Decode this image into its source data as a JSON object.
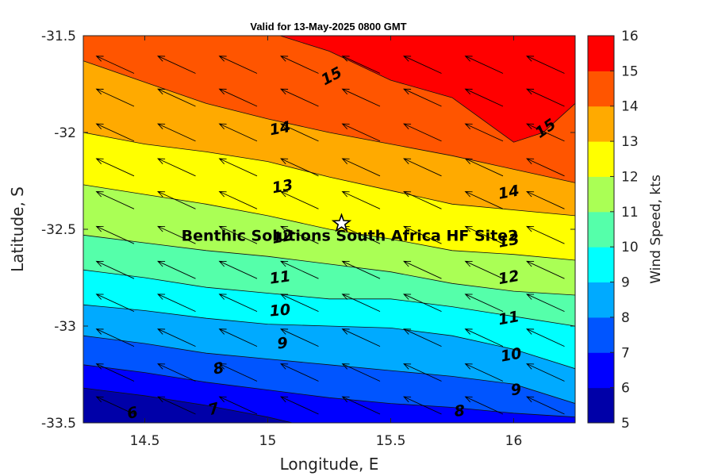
{
  "chart_data": {
    "type": "contour",
    "title": "Valid for 13-May-2025 0800 GMT",
    "xlabel": "Longitude, E",
    "ylabel": "Latitude, S",
    "xlim": [
      14.25,
      16.25
    ],
    "ylim": [
      -33.5,
      -31.5
    ],
    "x_ticks": [
      {
        "value": 14.5,
        "label": "14.5"
      },
      {
        "value": 15,
        "label": "15"
      },
      {
        "value": 15.5,
        "label": "15.5"
      },
      {
        "value": 16,
        "label": "16"
      }
    ],
    "y_ticks": [
      {
        "value": -31.5,
        "label": "-31.5"
      },
      {
        "value": -32,
        "label": "-32"
      },
      {
        "value": -32.5,
        "label": "-32.5"
      },
      {
        "value": -33,
        "label": "-33"
      },
      {
        "value": -33.5,
        "label": "-33.5"
      }
    ],
    "colorbar": {
      "label": "Wind Speed, kts",
      "min": 5,
      "max": 16,
      "tick_labels": [
        "5",
        "6",
        "7",
        "8",
        "9",
        "10",
        "11",
        "12",
        "13",
        "14",
        "15",
        "16"
      ],
      "colors": [
        "#0000a8",
        "#0000ff",
        "#0055ff",
        "#00aaff",
        "#00ffff",
        "#55ffaa",
        "#aaff55",
        "#ffff00",
        "#ffaa00",
        "#ff5500",
        "#ff0000"
      ]
    },
    "contours": [
      {
        "level": 6,
        "points": [
          [
            14.25,
            -33.32
          ],
          [
            14.5,
            -33.36
          ],
          [
            14.75,
            -33.41
          ],
          [
            15.0,
            -33.47
          ],
          [
            15.1,
            -33.5
          ]
        ]
      },
      {
        "level": 7,
        "points": [
          [
            14.25,
            -33.2
          ],
          [
            14.5,
            -33.24
          ],
          [
            14.75,
            -33.29
          ],
          [
            15.0,
            -33.33
          ],
          [
            15.25,
            -33.37
          ],
          [
            15.5,
            -33.4
          ],
          [
            15.75,
            -33.42
          ],
          [
            16.0,
            -33.45
          ],
          [
            16.25,
            -33.47
          ]
        ]
      },
      {
        "level": 8,
        "points": [
          [
            14.25,
            -33.05
          ],
          [
            14.5,
            -33.09
          ],
          [
            14.75,
            -33.14
          ],
          [
            15.0,
            -33.17
          ],
          [
            15.25,
            -33.2
          ],
          [
            15.5,
            -33.23
          ],
          [
            15.75,
            -33.26
          ],
          [
            16.0,
            -33.3
          ],
          [
            16.25,
            -33.4
          ]
        ]
      },
      {
        "level": 9,
        "points": [
          [
            14.25,
            -32.89
          ],
          [
            14.5,
            -32.92
          ],
          [
            14.75,
            -32.96
          ],
          [
            15.0,
            -32.99
          ],
          [
            15.25,
            -33.0
          ],
          [
            15.5,
            -33.01
          ],
          [
            15.75,
            -33.05
          ],
          [
            16.0,
            -33.12
          ],
          [
            16.25,
            -33.22
          ]
        ]
      },
      {
        "level": 10,
        "points": [
          [
            14.25,
            -32.71
          ],
          [
            14.5,
            -32.75
          ],
          [
            14.75,
            -32.8
          ],
          [
            15.0,
            -32.83
          ],
          [
            15.25,
            -32.86
          ],
          [
            15.5,
            -32.86
          ],
          [
            15.75,
            -32.9
          ],
          [
            16.0,
            -32.95
          ],
          [
            16.25,
            -33.0
          ]
        ]
      },
      {
        "level": 11,
        "points": [
          [
            14.25,
            -32.53
          ],
          [
            14.5,
            -32.57
          ],
          [
            14.75,
            -32.61
          ],
          [
            15.0,
            -32.64
          ],
          [
            15.25,
            -32.68
          ],
          [
            15.5,
            -32.72
          ],
          [
            15.75,
            -32.78
          ],
          [
            16.0,
            -32.82
          ],
          [
            16.25,
            -32.84
          ]
        ]
      },
      {
        "level": 12,
        "points": [
          [
            14.25,
            -32.27
          ],
          [
            14.5,
            -32.32
          ],
          [
            14.75,
            -32.37
          ],
          [
            15.0,
            -32.43
          ],
          [
            15.25,
            -32.5
          ],
          [
            15.5,
            -32.55
          ],
          [
            15.75,
            -32.61
          ],
          [
            16.0,
            -32.63
          ],
          [
            16.25,
            -32.66
          ]
        ]
      },
      {
        "level": 13,
        "points": [
          [
            14.25,
            -32.0
          ],
          [
            14.5,
            -32.06
          ],
          [
            14.75,
            -32.1
          ],
          [
            15.0,
            -32.15
          ],
          [
            15.25,
            -32.23
          ],
          [
            15.5,
            -32.3
          ],
          [
            15.75,
            -32.37
          ],
          [
            16.0,
            -32.4
          ],
          [
            16.25,
            -32.43
          ]
        ]
      },
      {
        "level": 14,
        "points": [
          [
            14.25,
            -31.63
          ],
          [
            14.5,
            -31.74
          ],
          [
            14.75,
            -31.85
          ],
          [
            15.0,
            -31.93
          ],
          [
            15.25,
            -32.0
          ],
          [
            15.5,
            -32.06
          ],
          [
            15.75,
            -32.12
          ],
          [
            16.0,
            -32.19
          ],
          [
            16.25,
            -32.26
          ]
        ]
      },
      {
        "level": 15,
        "points": [
          [
            15.05,
            -31.5
          ],
          [
            15.25,
            -31.58
          ],
          [
            15.5,
            -31.73
          ],
          [
            15.75,
            -31.82
          ],
          [
            16.0,
            -32.05
          ],
          [
            16.12,
            -32.0
          ],
          [
            16.25,
            -31.85
          ]
        ]
      }
    ],
    "contour_labels": [
      {
        "text": "6",
        "lon": 14.45,
        "lat": -33.45,
        "angle": -12
      },
      {
        "text": "7",
        "lon": 14.78,
        "lat": -33.43,
        "angle": -15
      },
      {
        "text": "8",
        "lon": 14.8,
        "lat": -33.22,
        "angle": -12
      },
      {
        "text": "8",
        "lon": 15.78,
        "lat": -33.44,
        "angle": -5
      },
      {
        "text": "9",
        "lon": 15.06,
        "lat": -33.09,
        "angle": -5
      },
      {
        "text": "9",
        "lon": 16.01,
        "lat": -33.33,
        "angle": -8
      },
      {
        "text": "10",
        "lon": 15.05,
        "lat": -32.92,
        "angle": -5
      },
      {
        "text": "10",
        "lon": 15.99,
        "lat": -33.15,
        "angle": -10
      },
      {
        "text": "11",
        "lon": 15.05,
        "lat": -32.75,
        "angle": -8
      },
      {
        "text": "11",
        "lon": 15.98,
        "lat": -32.96,
        "angle": -10
      },
      {
        "text": "12",
        "lon": 15.06,
        "lat": -32.54,
        "angle": -10
      },
      {
        "text": "12",
        "lon": 15.98,
        "lat": -32.75,
        "angle": -10
      },
      {
        "text": "13",
        "lon": 15.06,
        "lat": -32.28,
        "angle": -10
      },
      {
        "text": "13",
        "lon": 15.98,
        "lat": -32.56,
        "angle": -10
      },
      {
        "text": "14",
        "lon": 15.05,
        "lat": -31.98,
        "angle": -10
      },
      {
        "text": "14",
        "lon": 15.98,
        "lat": -32.31,
        "angle": -10
      },
      {
        "text": "15",
        "lon": 15.26,
        "lat": -31.71,
        "angle": -28
      },
      {
        "text": "15",
        "lon": 16.13,
        "lat": -31.98,
        "angle": -35
      }
    ],
    "wind_vectors": {
      "lons": [
        14.38,
        14.63,
        14.88,
        15.13,
        15.38,
        15.63,
        15.88,
        16.13
      ],
      "lats": [
        -31.65,
        -31.82,
        -32.0,
        -32.18,
        -32.35,
        -32.53,
        -32.71,
        -32.88,
        -33.06,
        -33.24,
        -33.41
      ],
      "direction_deg": 115,
      "note_units": "kts"
    },
    "site": {
      "name": "Benthic Solutions South Africa HF Site2",
      "lon": 15.3,
      "lat": -32.47
    }
  }
}
